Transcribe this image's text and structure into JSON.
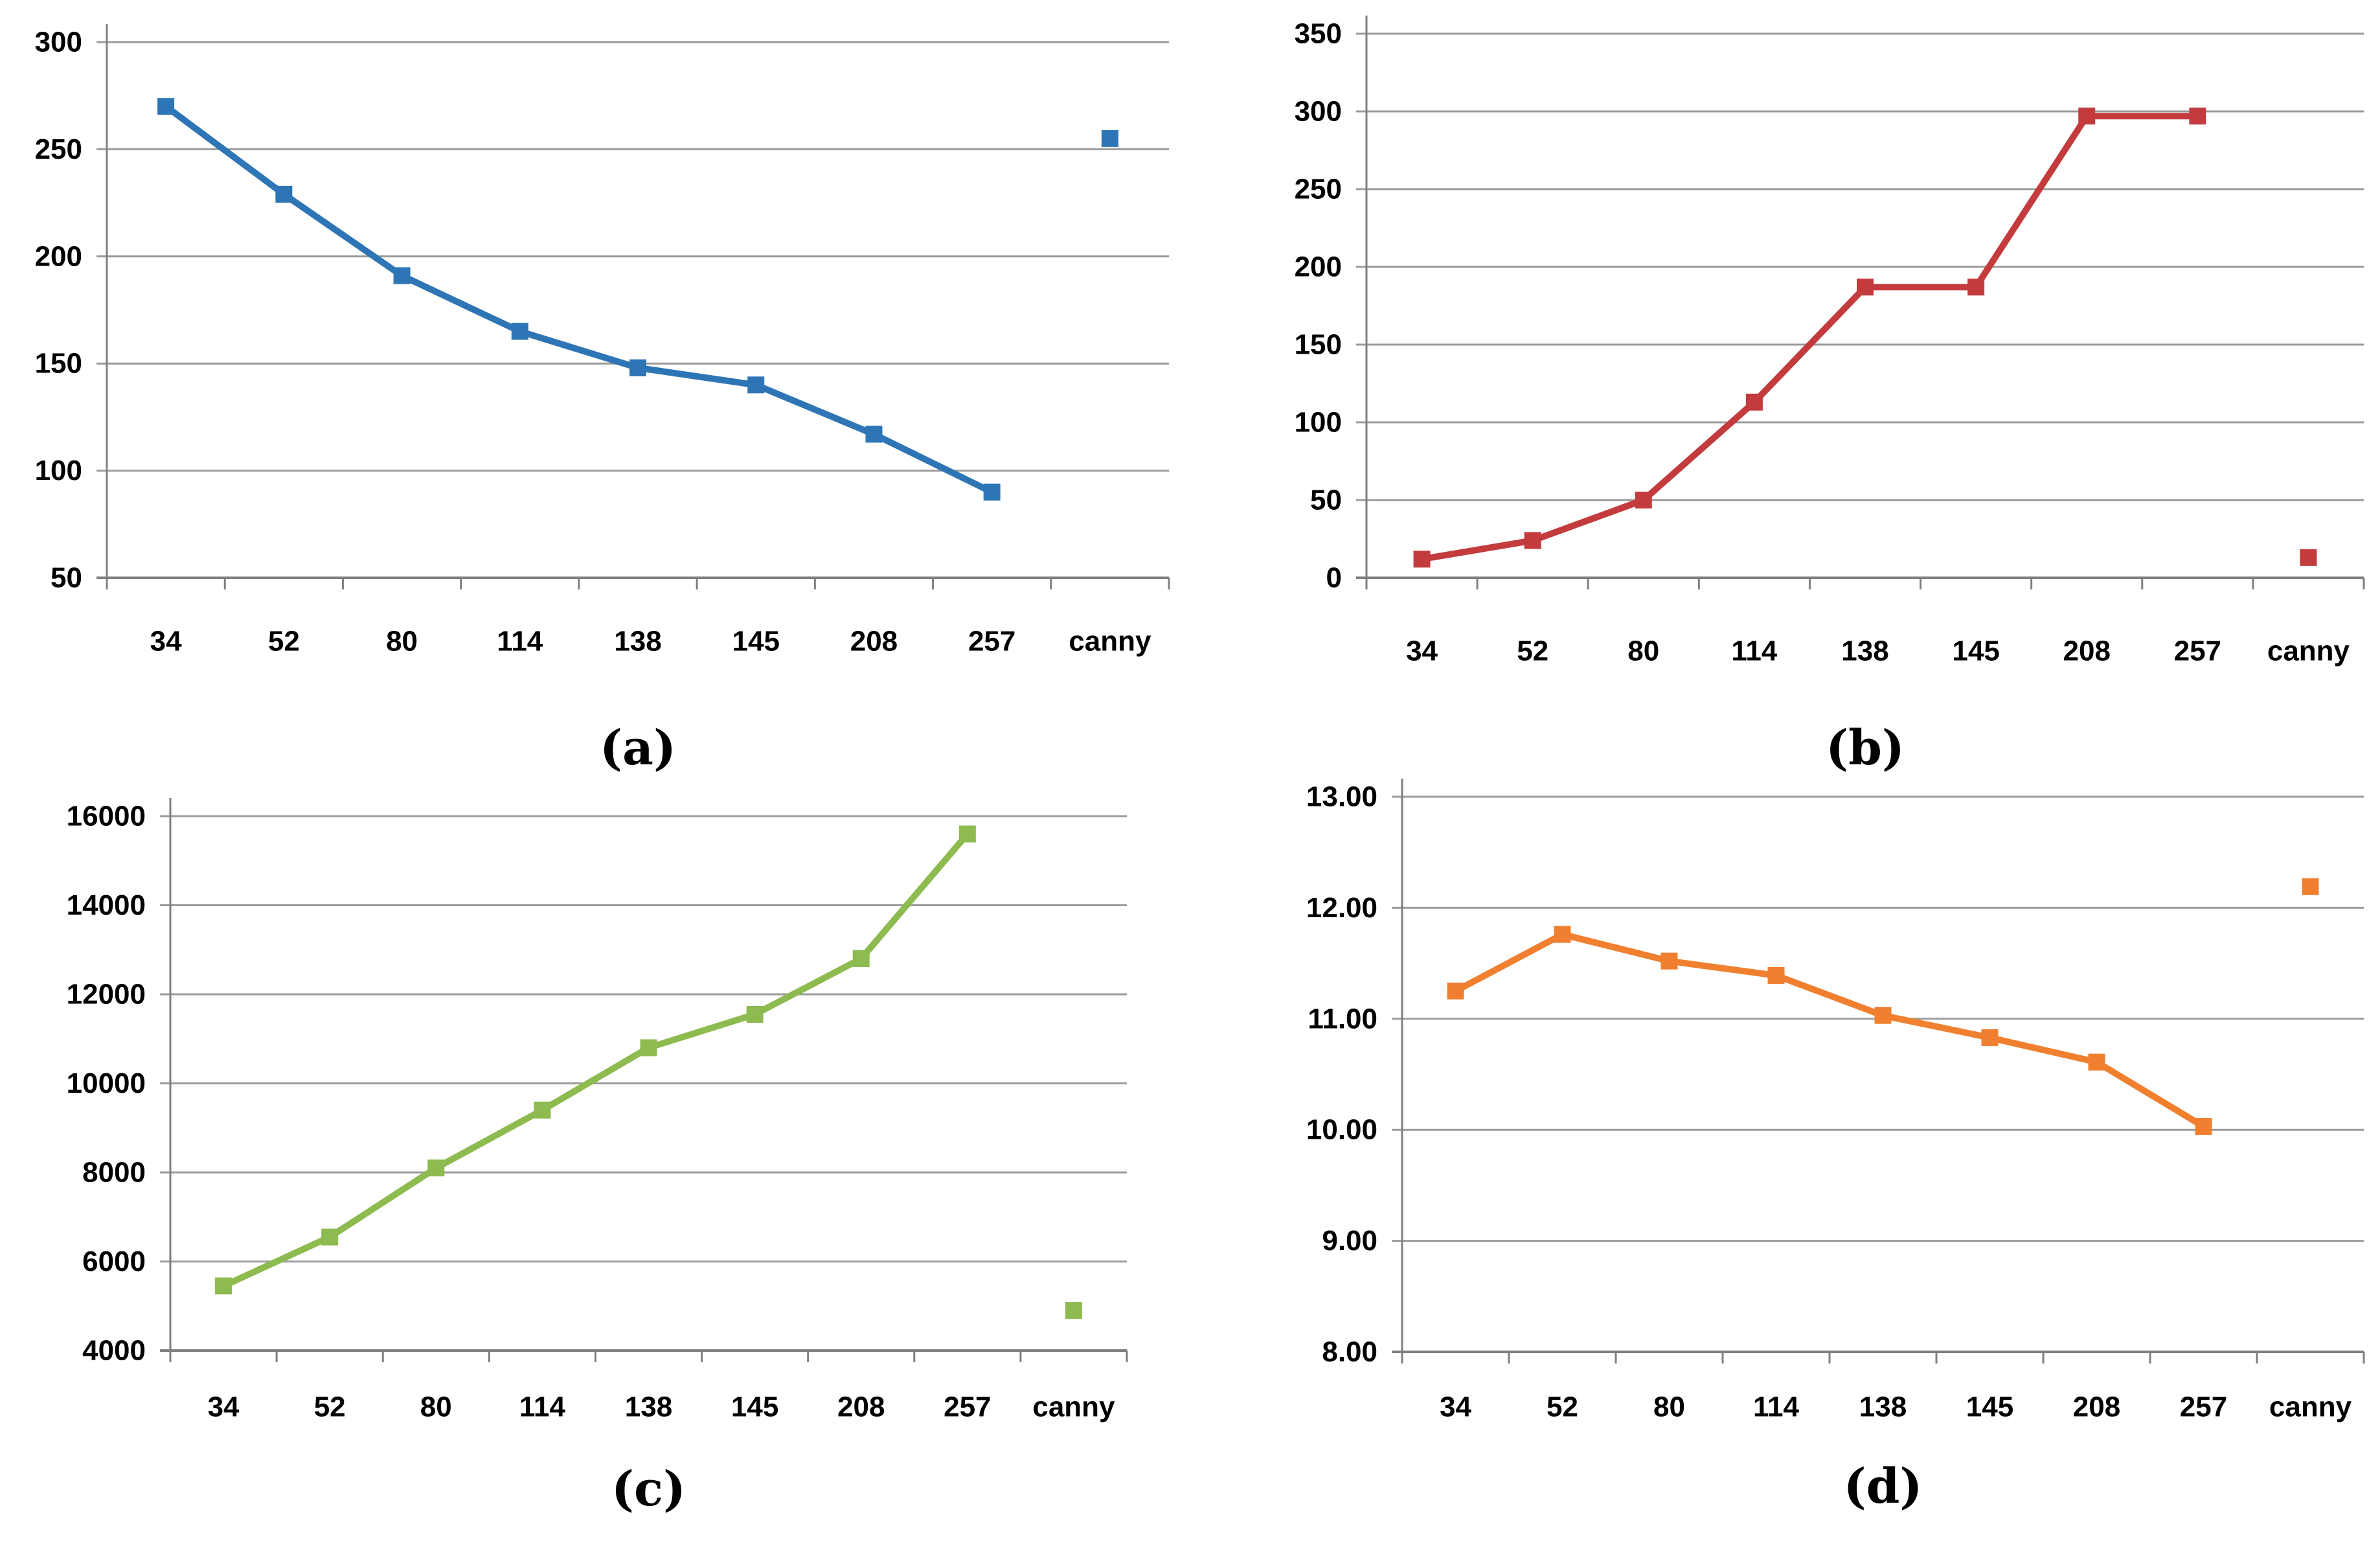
{
  "figure": {
    "background": "#ffffff",
    "grid_color": "#9b9b9b",
    "axis_color": "#7f7f7f",
    "text_color": "#000000"
  },
  "chart_data": [
    {
      "panel_label": "(a)",
      "type": "line",
      "marker": "square",
      "grid": true,
      "legend": "none",
      "categories": [
        "34",
        "52",
        "80",
        "114",
        "138",
        "145",
        "208",
        "257",
        "canny"
      ],
      "values": [
        270,
        229,
        191,
        165,
        148,
        140,
        117,
        90
      ],
      "canny_value": 255,
      "yticks": [
        300,
        250,
        200,
        150,
        100,
        50
      ],
      "ylim": [
        50,
        300
      ],
      "ytick_format": "int",
      "color": "#2E75B6"
    },
    {
      "panel_label": "(b)",
      "type": "line",
      "marker": "square",
      "grid": true,
      "legend": "none",
      "categories": [
        "34",
        "52",
        "80",
        "114",
        "138",
        "145",
        "208",
        "257",
        "canny"
      ],
      "values": [
        12,
        24,
        50,
        113,
        187,
        187,
        297,
        297
      ],
      "canny_value": 13,
      "yticks": [
        350,
        300,
        250,
        200,
        150,
        100,
        50,
        0
      ],
      "ylim": [
        0,
        350
      ],
      "ytick_format": "int",
      "color": "#C33B3D"
    },
    {
      "panel_label": "(c)",
      "type": "line",
      "marker": "square",
      "grid": true,
      "legend": "none",
      "categories": [
        "34",
        "52",
        "80",
        "114",
        "138",
        "145",
        "208",
        "257",
        "canny"
      ],
      "values": [
        5450,
        6550,
        8100,
        9400,
        10800,
        11550,
        12800,
        15600
      ],
      "canny_value": 4900,
      "yticks": [
        16000,
        14000,
        12000,
        10000,
        8000,
        6000,
        4000
      ],
      "ylim": [
        4000,
        16000
      ],
      "ytick_format": "int",
      "color": "#8DBB4F"
    },
    {
      "panel_label": "(d)",
      "type": "line",
      "marker": "square",
      "grid": true,
      "legend": "none",
      "categories": [
        "34",
        "52",
        "80",
        "114",
        "138",
        "145",
        "208",
        "257",
        "canny"
      ],
      "values": [
        11.25,
        11.76,
        11.52,
        11.39,
        11.03,
        10.83,
        10.61,
        10.03
      ],
      "canny_value": 12.19,
      "yticks": [
        13,
        12,
        11,
        10,
        9,
        8
      ],
      "ylim": [
        8,
        13
      ],
      "ytick_format": "2dp",
      "color": "#F08030"
    }
  ]
}
